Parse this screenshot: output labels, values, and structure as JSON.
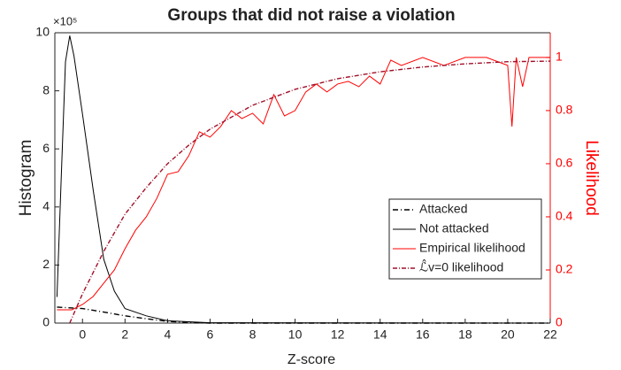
{
  "chart_data": {
    "type": "line",
    "title": "Groups that did not raise a violation",
    "xlabel": "Z-score",
    "ylabel": "Histogram",
    "y2label": "Likelihood",
    "exponent_label": "×10⁵",
    "xlim": [
      -1.3,
      22
    ],
    "xticks": [
      0,
      2,
      4,
      6,
      8,
      10,
      12,
      14,
      16,
      18,
      20,
      22
    ],
    "ylim": [
      0,
      10
    ],
    "yticks": [
      0,
      2,
      4,
      6,
      8,
      10
    ],
    "y2lim": [
      0,
      1.093
    ],
    "y2ticks": [
      0,
      0.2,
      0.4,
      0.6,
      0.8,
      1
    ],
    "legend": "lower right",
    "series": [
      {
        "name": "Attacked",
        "color": "#000000",
        "dash": "6 3 1 3",
        "x": [
          -1.2,
          0,
          1,
          2,
          3,
          4,
          5,
          6,
          22
        ],
        "values": [
          0.55,
          0.5,
          0.38,
          0.25,
          0.15,
          0.06,
          0.02,
          0,
          0
        ]
      },
      {
        "name": "Not attacked",
        "color": "#000000",
        "x": [
          -1.2,
          -1,
          -0.8,
          -0.6,
          -0.4,
          -0.2,
          0,
          0.5,
          1,
          1.5,
          2,
          3,
          4,
          6,
          22
        ],
        "values": [
          0.9,
          5,
          9,
          9.9,
          9.2,
          8.2,
          7.2,
          4.6,
          2.2,
          1.1,
          0.5,
          0.25,
          0.08,
          0.01,
          0
        ]
      },
      {
        "name": "Empirical likelihood",
        "color": "#ff0000",
        "axis": "y2",
        "x": [
          -1.2,
          -0.5,
          0,
          0.5,
          1,
          1.5,
          2,
          2.5,
          3,
          3.5,
          4,
          4.5,
          5,
          5.5,
          6,
          6.5,
          7,
          7.5,
          8,
          8.5,
          9,
          9.5,
          10,
          10.5,
          11,
          11.5,
          12,
          12.5,
          13,
          13.5,
          14,
          14.5,
          15,
          16,
          17,
          18,
          19,
          20,
          20.2,
          20.4,
          20.7,
          21,
          22
        ],
        "values": [
          0.05,
          0.05,
          0.07,
          0.1,
          0.15,
          0.2,
          0.28,
          0.35,
          0.4,
          0.47,
          0.56,
          0.57,
          0.63,
          0.72,
          0.7,
          0.74,
          0.8,
          0.77,
          0.79,
          0.75,
          0.86,
          0.78,
          0.8,
          0.87,
          0.9,
          0.87,
          0.9,
          0.91,
          0.89,
          0.93,
          0.9,
          0.99,
          0.97,
          1,
          0.97,
          1,
          1,
          0.97,
          0.74,
          1,
          0.89,
          1,
          1
        ]
      },
      {
        "name": "ℒ̂v=0 likelihood",
        "color": "#a0102a",
        "axis": "y2",
        "dash": "5 2 1 2",
        "x": [
          -0.6,
          0,
          1,
          2,
          3,
          4,
          5,
          6,
          8,
          10,
          12,
          14,
          16,
          18,
          20,
          22
        ],
        "values": [
          0,
          0.11,
          0.27,
          0.41,
          0.51,
          0.6,
          0.67,
          0.73,
          0.82,
          0.88,
          0.92,
          0.946,
          0.964,
          0.976,
          0.984,
          0.986
        ]
      }
    ]
  }
}
